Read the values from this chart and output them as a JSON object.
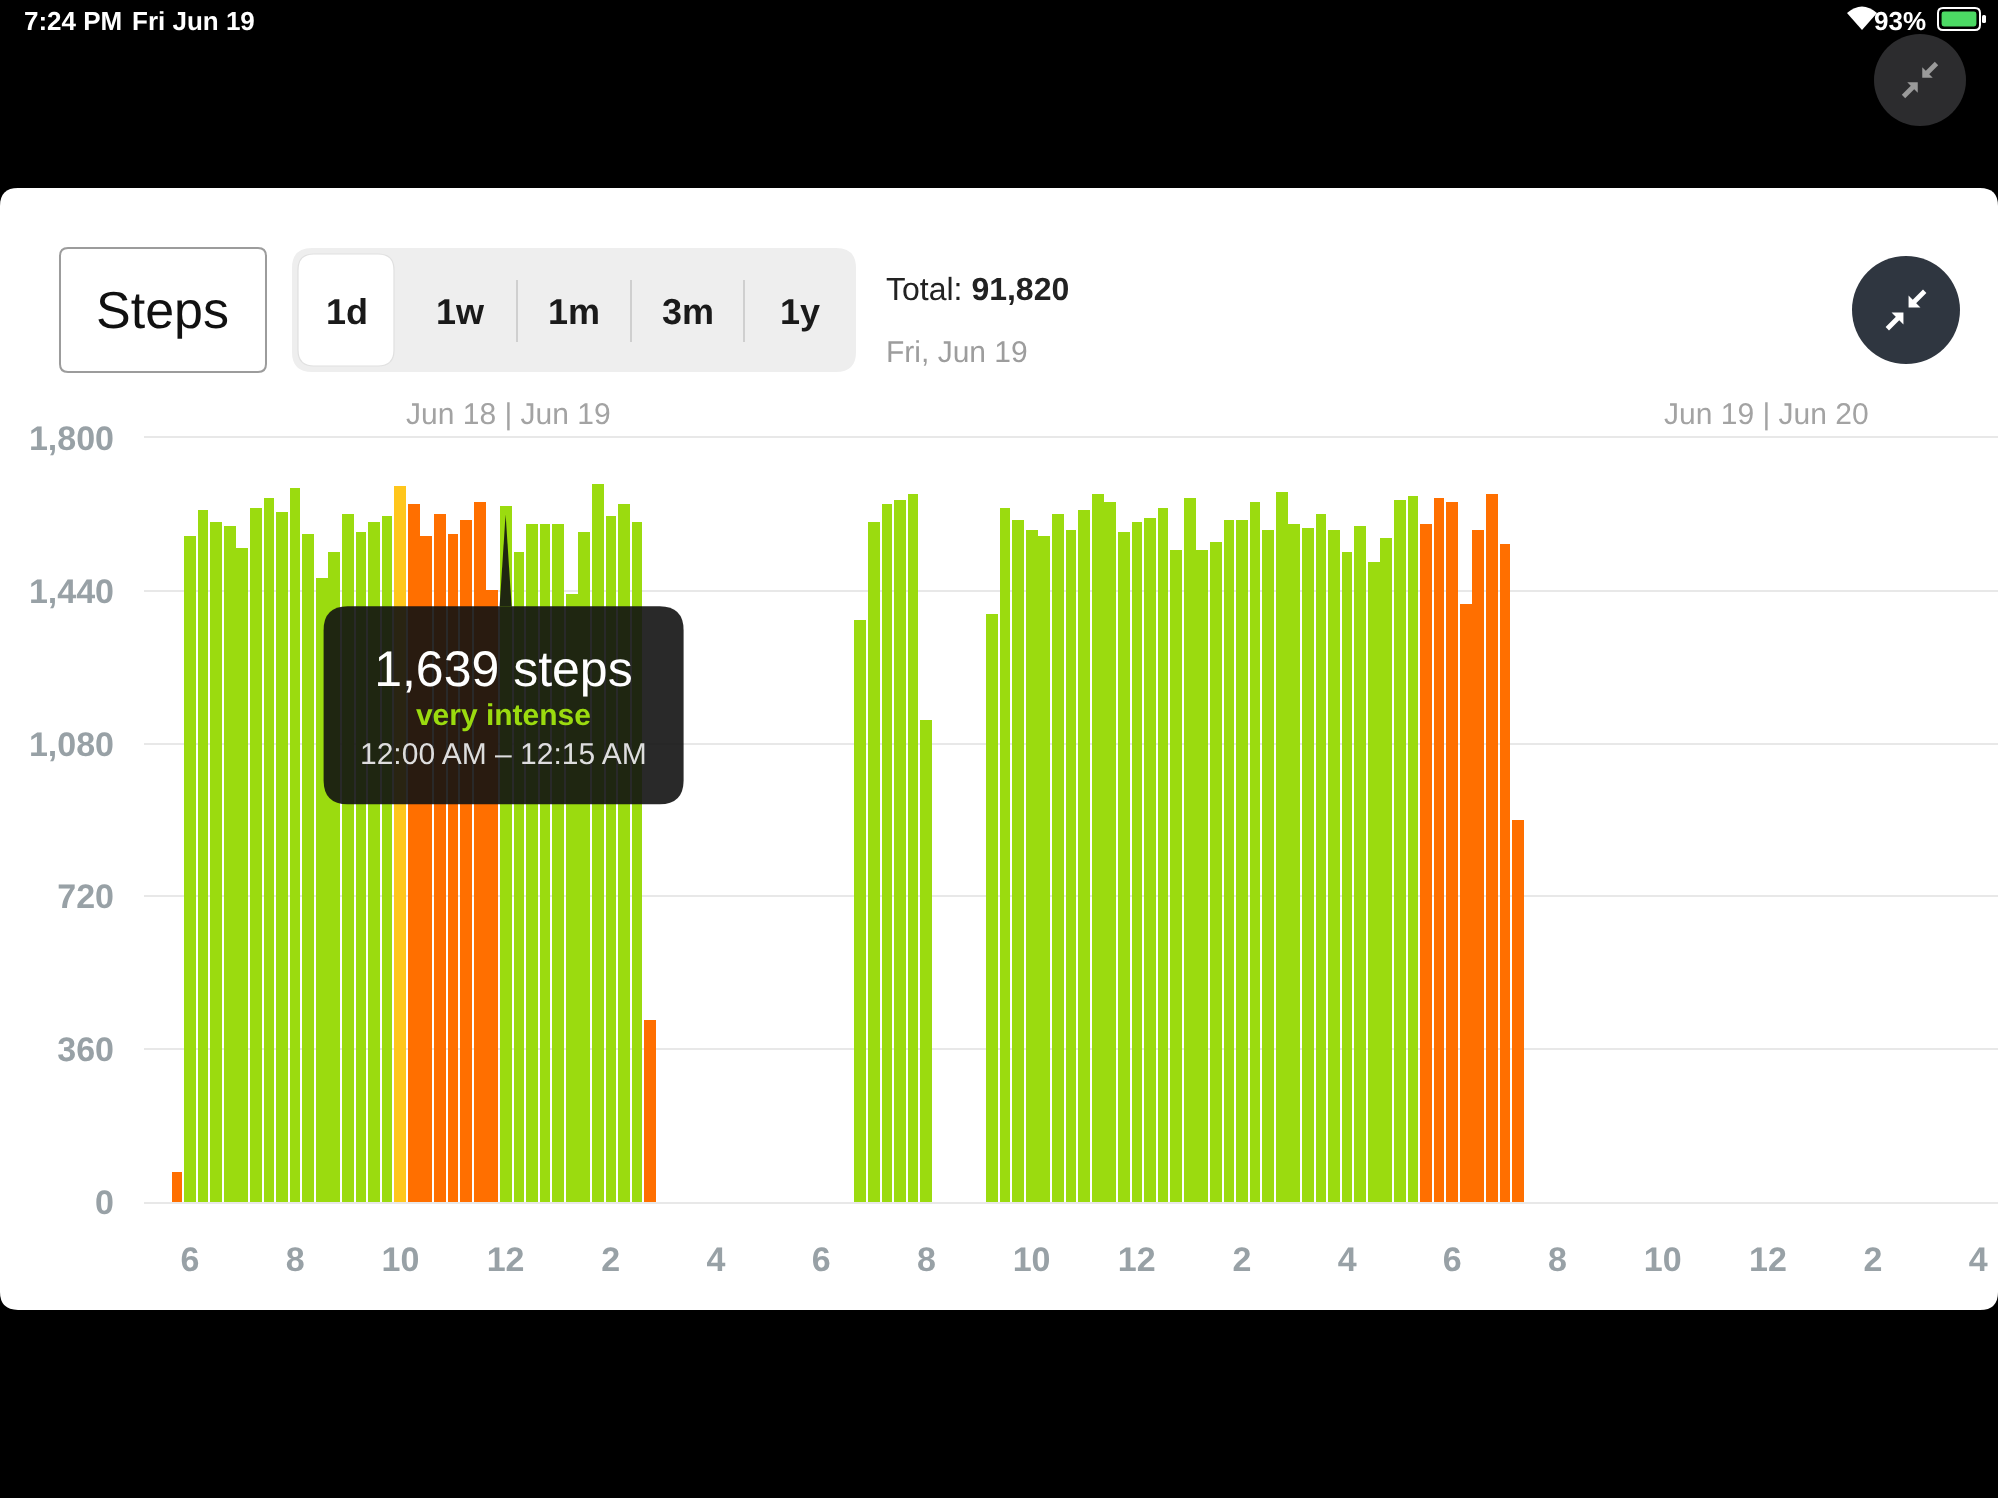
{
  "chart_data": {
    "type": "bar",
    "title": "Steps",
    "subtitle": "Total: 91,820",
    "annotations": [
      "Fri, Jun 19",
      "1d",
      "1w",
      "1m",
      "3m",
      "1y",
      "7:24 PM",
      "Fri Jun 19",
      "93%",
      "Jun 18 | Jun 19",
      "Jun 19 | Jun 20",
      {
        "text": "1,639 steps\nvery intense\n12:00 AM – 12:15 AM",
        "x": "12",
        "y": 1639
      }
    ],
    "categories": [
      null,
      null,
      null,
      "6",
      null,
      null,
      null,
      null,
      null,
      null,
      null,
      "8",
      null,
      null,
      null,
      null,
      null,
      null,
      null,
      "10",
      null,
      null,
      null,
      null,
      null,
      null,
      null,
      "12",
      null,
      null,
      null,
      null,
      null,
      null,
      null,
      "2",
      null,
      null,
      null,
      null,
      null,
      null,
      null,
      "4",
      null,
      null,
      null,
      null,
      null,
      null,
      null,
      "6",
      null,
      null,
      null,
      null,
      null,
      null,
      null,
      "8",
      null,
      null,
      null,
      null,
      null,
      null,
      null,
      "10",
      null,
      null,
      null,
      null,
      null,
      null,
      null,
      "12",
      null,
      null,
      null,
      null,
      null,
      null,
      null,
      "2",
      null,
      null,
      null,
      null,
      null,
      null,
      null,
      "4",
      null,
      null,
      null,
      null,
      null,
      null,
      null,
      "6",
      null,
      null,
      null,
      null,
      null,
      null,
      null,
      "8",
      null,
      null,
      null,
      null,
      null,
      null,
      null,
      "10",
      null,
      null,
      null,
      null,
      null,
      null,
      null,
      "12",
      null,
      null,
      null,
      null,
      null,
      null,
      null,
      "2",
      null,
      null,
      null,
      null,
      null,
      null,
      null,
      "4",
      null
    ],
    "values": [
      null,
      null,
      70,
      1568,
      1631,
      1604,
      1591,
      1541,
      1635,
      1660,
      1626,
      1682,
      1572,
      1470,
      1530,
      1623,
      1577,
      1604,
      1618,
      1687,
      1643,
      1568,
      1621,
      1574,
      1609,
      1651,
      1442,
      1639,
      1530,
      1599,
      1598,
      1598,
      1434,
      1577,
      1693,
      1618,
      1646,
      1602,
      429,
      null,
      null,
      null,
      null,
      null,
      null,
      null,
      null,
      null,
      null,
      null,
      null,
      null,
      null,
      null,
      1373,
      1604,
      1643,
      1653,
      1668,
      1137,
      null,
      null,
      null,
      null,
      1386,
      1634,
      1607,
      1583,
      1568,
      1621,
      1582,
      1631,
      1667,
      1648,
      1577,
      1602,
      1612,
      1637,
      1535,
      1660,
      1536,
      1557,
      1609,
      1607,
      1650,
      1583,
      1671,
      1599,
      1588,
      1621,
      1583,
      1532,
      1593,
      1508,
      1565,
      1656,
      1662,
      1599,
      1659,
      1651,
      1408,
      1582,
      1668,
      1549,
      900,
      null,
      null,
      null,
      null,
      null,
      null,
      null,
      null,
      null,
      null,
      null,
      null,
      null,
      null,
      null,
      null,
      null,
      null,
      null,
      null,
      null,
      null,
      null,
      null,
      null,
      null,
      null,
      null,
      null,
      null,
      null,
      null,
      null,
      null,
      null,
      null
    ],
    "colors": [
      null,
      null,
      "#ff6f00",
      "#9bdb0f",
      "#9bdb0f",
      "#9bdb0f",
      "#9bdb0f",
      "#9bdb0f",
      "#9bdb0f",
      "#9bdb0f",
      "#9bdb0f",
      "#9bdb0f",
      "#9bdb0f",
      "#9bdb0f",
      "#9bdb0f",
      "#9bdb0f",
      "#9bdb0f",
      "#9bdb0f",
      "#9bdb0f",
      "#ffc61c",
      "#ff6f00",
      "#ff6f00",
      "#ff6f00",
      "#ff6f00",
      "#ff6f00",
      "#ff6f00",
      "#ff6f00",
      "#9bdb0f",
      "#9bdb0f",
      "#9bdb0f",
      "#9bdb0f",
      "#9bdb0f",
      "#9bdb0f",
      "#9bdb0f",
      "#9bdb0f",
      "#9bdb0f",
      "#9bdb0f",
      "#9bdb0f",
      "#ff6f00",
      null,
      null,
      null,
      null,
      null,
      null,
      null,
      null,
      null,
      null,
      null,
      null,
      null,
      null,
      null,
      "#9bdb0f",
      "#9bdb0f",
      "#9bdb0f",
      "#9bdb0f",
      "#9bdb0f",
      "#9bdb0f",
      null,
      null,
      null,
      null,
      "#9bdb0f",
      "#9bdb0f",
      "#9bdb0f",
      "#9bdb0f",
      "#9bdb0f",
      "#9bdb0f",
      "#9bdb0f",
      "#9bdb0f",
      "#9bdb0f",
      "#9bdb0f",
      "#9bdb0f",
      "#9bdb0f",
      "#9bdb0f",
      "#9bdb0f",
      "#9bdb0f",
      "#9bdb0f",
      "#9bdb0f",
      "#9bdb0f",
      "#9bdb0f",
      "#9bdb0f",
      "#9bdb0f",
      "#9bdb0f",
      "#9bdb0f",
      "#9bdb0f",
      "#9bdb0f",
      "#9bdb0f",
      "#9bdb0f",
      "#9bdb0f",
      "#9bdb0f",
      "#9bdb0f",
      "#9bdb0f",
      "#9bdb0f",
      "#9bdb0f",
      "#ff6f00",
      "#ff6f00",
      "#ff6f00",
      "#ff6f00",
      "#ff6f00",
      "#ff6f00",
      "#ff6f00",
      "#ff6f00",
      null,
      null,
      null,
      null,
      null,
      null,
      null,
      null,
      null,
      null,
      null,
      null,
      null,
      null,
      null,
      null,
      null,
      null,
      null,
      null,
      null,
      null,
      null,
      null,
      null,
      null,
      null,
      null,
      null,
      null,
      null,
      null,
      null,
      null,
      null,
      null
    ],
    "ylim": [
      0,
      1800
    ],
    "yticks": [
      0,
      360,
      720,
      {
        "value": 1080,
        "label": "1,080"
      },
      {
        "value": 1440,
        "label": "1,440"
      },
      {
        "value": 1800,
        "label": "1,800"
      }
    ],
    "grid": "y"
  }
}
